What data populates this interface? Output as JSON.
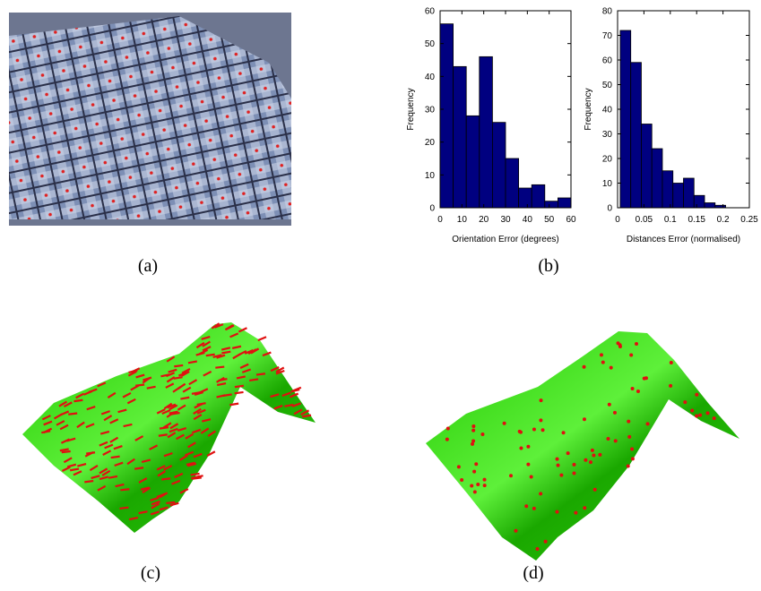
{
  "captions": [
    "(a)",
    "(b)",
    "(c)",
    "(d)"
  ],
  "chart_data": [
    {
      "type": "histogram",
      "x_label": "Orientation Error (degrees)",
      "y_label": "Frequency",
      "bins": [
        0,
        6,
        12,
        18,
        24,
        30,
        36,
        42,
        48,
        54,
        60
      ],
      "values": [
        56,
        43,
        28,
        46,
        26,
        15,
        6,
        7,
        2,
        3
      ],
      "color": "#000080",
      "xlim": [
        0,
        60
      ],
      "xticks": [
        0,
        10,
        20,
        30,
        40,
        50,
        60
      ],
      "ylim": [
        0,
        60
      ],
      "yticks": [
        0,
        10,
        20,
        30,
        40,
        50,
        60
      ]
    },
    {
      "type": "histogram",
      "x_label": "Distances Error (normalised)",
      "y_label": "Frequency",
      "bins": [
        0.005,
        0.025,
        0.045,
        0.065,
        0.085,
        0.105,
        0.125,
        0.145,
        0.165,
        0.185,
        0.205
      ],
      "values": [
        72,
        59,
        34,
        24,
        15,
        10,
        12,
        5,
        2,
        1
      ],
      "color": "#000080",
      "xlim": [
        0,
        0.25
      ],
      "xticks": [
        0,
        0.05,
        0.1,
        0.15,
        0.2,
        0.25
      ],
      "ylim": [
        0,
        80
      ],
      "yticks": [
        0,
        10,
        20,
        30,
        40,
        50,
        60,
        70,
        80
      ]
    }
  ]
}
